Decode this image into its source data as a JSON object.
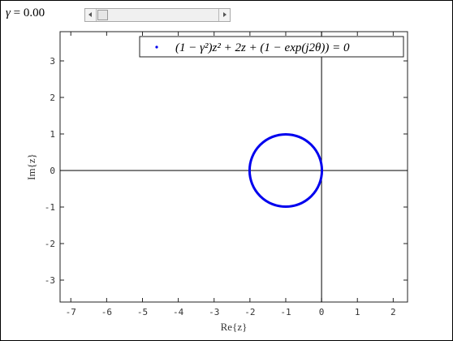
{
  "control": {
    "gamma_symbol": "γ",
    "gamma_eq": " = 0.00",
    "gamma_value": 0.0
  },
  "chart_data": {
    "type": "scatter",
    "xlabel": "Re{z}",
    "ylabel": "Im{z}",
    "xlim": [
      -7.3,
      2.4
    ],
    "ylim": [
      -3.6,
      3.8
    ],
    "xticks": [
      -7,
      -6,
      -5,
      -4,
      -3,
      -2,
      -1,
      0,
      1,
      2
    ],
    "yticks": [
      -3,
      -2,
      -1,
      0,
      1,
      2,
      3
    ],
    "grid": false,
    "legend_position": "top-right",
    "series": [
      {
        "name": "(1 − γ²)z² + 2z + (1 − exp(j2θ)) = 0",
        "color": "#0000ee",
        "shape": "circle",
        "center": [
          -1,
          0
        ],
        "radius": 1
      }
    ],
    "reference_lines": {
      "x": 0,
      "y": 0
    }
  }
}
